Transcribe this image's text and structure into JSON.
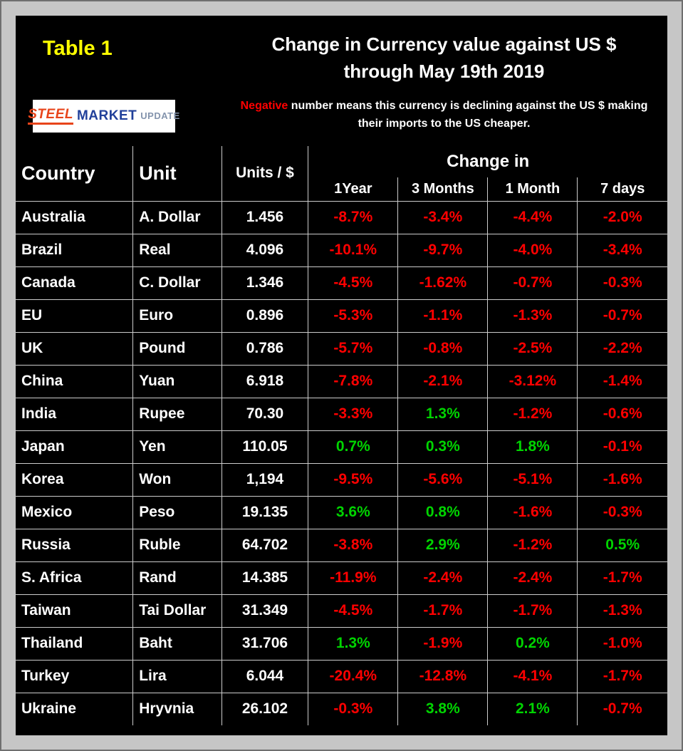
{
  "colors": {
    "negative": "#ff0000",
    "positive": "#00d400",
    "label_yellow": "#ffff00"
  },
  "header": {
    "table_label": "Table 1",
    "title_line1": "Change in Currency value against US $",
    "title_line2": "through May 19th 2019",
    "logo": {
      "steel": "STEEL",
      "market": "MARKET",
      "update": "UPDATE"
    },
    "note": {
      "highlight": "Negative",
      "rest": " number means this currency is declining against the US $ making their imports to the US cheaper."
    }
  },
  "table": {
    "headers": {
      "country": "Country",
      "unit": "Unit",
      "units_per_dollar": "Units / $",
      "change_in": "Change in",
      "periods": [
        "1Year",
        "3 Months",
        "1 Month",
        "7 days"
      ]
    }
  },
  "chart_data": {
    "type": "table",
    "title": "Change in Currency value against US $ through May 19th 2019",
    "columns": [
      "Country",
      "Unit",
      "Units / $",
      "1Year",
      "3 Months",
      "1 Month",
      "7 days"
    ],
    "rows": [
      [
        "Australia",
        "A. Dollar",
        "1.456",
        "-8.7%",
        "-3.4%",
        "-4.4%",
        "-2.0%"
      ],
      [
        "Brazil",
        "Real",
        "4.096",
        "-10.1%",
        "-9.7%",
        "-4.0%",
        "-3.4%"
      ],
      [
        "Canada",
        "C. Dollar",
        "1.346",
        "-4.5%",
        "-1.62%",
        "-0.7%",
        "-0.3%"
      ],
      [
        "EU",
        "Euro",
        "0.896",
        "-5.3%",
        "-1.1%",
        "-1.3%",
        "-0.7%"
      ],
      [
        "UK",
        "Pound",
        "0.786",
        "-5.7%",
        "-0.8%",
        "-2.5%",
        "-2.2%"
      ],
      [
        "China",
        "Yuan",
        "6.918",
        "-7.8%",
        "-2.1%",
        "-3.12%",
        "-1.4%"
      ],
      [
        "India",
        "Rupee",
        "70.30",
        "-3.3%",
        "1.3%",
        "-1.2%",
        "-0.6%"
      ],
      [
        "Japan",
        "Yen",
        "110.05",
        "0.7%",
        "0.3%",
        "1.8%",
        "-0.1%"
      ],
      [
        "Korea",
        "Won",
        "1,194",
        "-9.5%",
        "-5.6%",
        "-5.1%",
        "-1.6%"
      ],
      [
        "Mexico",
        "Peso",
        "19.135",
        "3.6%",
        "0.8%",
        "-1.6%",
        "-0.3%"
      ],
      [
        "Russia",
        "Ruble",
        "64.702",
        "-3.8%",
        "2.9%",
        "-1.2%",
        "0.5%"
      ],
      [
        "S. Africa",
        "Rand",
        "14.385",
        "-11.9%",
        "-2.4%",
        "-2.4%",
        "-1.7%"
      ],
      [
        "Taiwan",
        "Tai Dollar",
        "31.349",
        "-4.5%",
        "-1.7%",
        "-1.7%",
        "-1.3%"
      ],
      [
        "Thailand",
        "Baht",
        "31.706",
        "1.3%",
        "-1.9%",
        "0.2%",
        "-1.0%"
      ],
      [
        "Turkey",
        "Lira",
        "6.044",
        "-20.4%",
        "-12.8%",
        "-4.1%",
        "-1.7%"
      ],
      [
        "Ukraine",
        "Hryvnia",
        "26.102",
        "-0.3%",
        "3.8%",
        "2.1%",
        "-0.7%"
      ]
    ]
  }
}
